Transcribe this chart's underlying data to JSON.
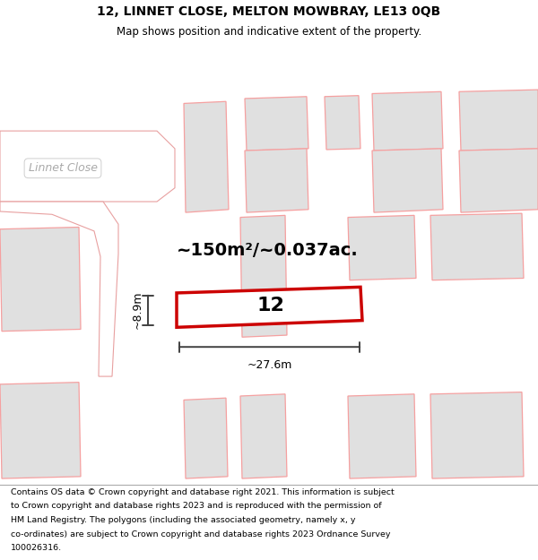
{
  "title": "12, LINNET CLOSE, MELTON MOWBRAY, LE13 0QB",
  "subtitle": "Map shows position and indicative extent of the property.",
  "footer_lines": [
    "Contains OS data © Crown copyright and database right 2021. This information is subject",
    "to Crown copyright and database rights 2023 and is reproduced with the permission of",
    "HM Land Registry. The polygons (including the associated geometry, namely x, y",
    "co-ordinates) are subject to Crown copyright and database rights 2023 Ordnance Survey",
    "100026316."
  ],
  "area_text": "~150m²/~0.037ac.",
  "width_label": "~27.6m",
  "height_label": "~8.9m",
  "property_number": "12",
  "bg_color": "#ffffff",
  "building_fill": "#e0e0e0",
  "building_stroke": "#f5a0a0",
  "highlight_fill": "#ffffff",
  "highlight_stroke": "#cc0000",
  "road_label": "Linnet Close",
  "road_label_color": "#aaaaaa",
  "dim_color": "#404040",
  "title_fontsize": 10,
  "subtitle_fontsize": 8.5,
  "footer_fontsize": 6.8,
  "area_fontsize": 14,
  "number_fontsize": 16,
  "dim_fontsize": 9,
  "road_fontsize": 9
}
